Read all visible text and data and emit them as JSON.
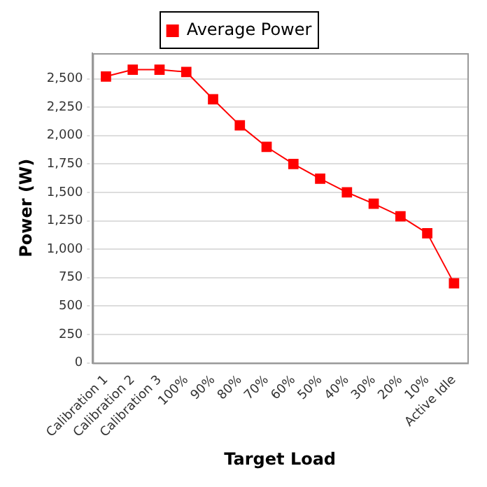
{
  "chart_data": {
    "type": "line",
    "xlabel": "Target Load",
    "ylabel": "Power (W)",
    "categories": [
      "Calibration 1",
      "Calibration 2",
      "Calibration 3",
      "100%",
      "90%",
      "80%",
      "70%",
      "60%",
      "50%",
      "40%",
      "30%",
      "20%",
      "10%",
      "Active Idle"
    ],
    "series": [
      {
        "name": "Average Power",
        "color": "#ff0000",
        "values": [
          2520,
          2580,
          2580,
          2560,
          2320,
          2090,
          1900,
          1750,
          1620,
          1500,
          1400,
          1290,
          1140,
          700
        ]
      }
    ],
    "ylim": [
      0,
      2725
    ],
    "yticks": [
      0,
      250,
      500,
      750,
      {
        "value": 1000,
        "label": "1,000"
      },
      {
        "value": 1250,
        "label": "1,250"
      },
      {
        "value": 1500,
        "label": "1,500"
      },
      {
        "value": 1750,
        "label": "1,750"
      },
      {
        "value": 2000,
        "label": "2,000"
      },
      {
        "value": 2250,
        "label": "2,250"
      },
      {
        "value": 2500,
        "label": "2,500"
      }
    ],
    "grid": "y",
    "legend": "top",
    "marker": "square",
    "line_style": "solid"
  }
}
